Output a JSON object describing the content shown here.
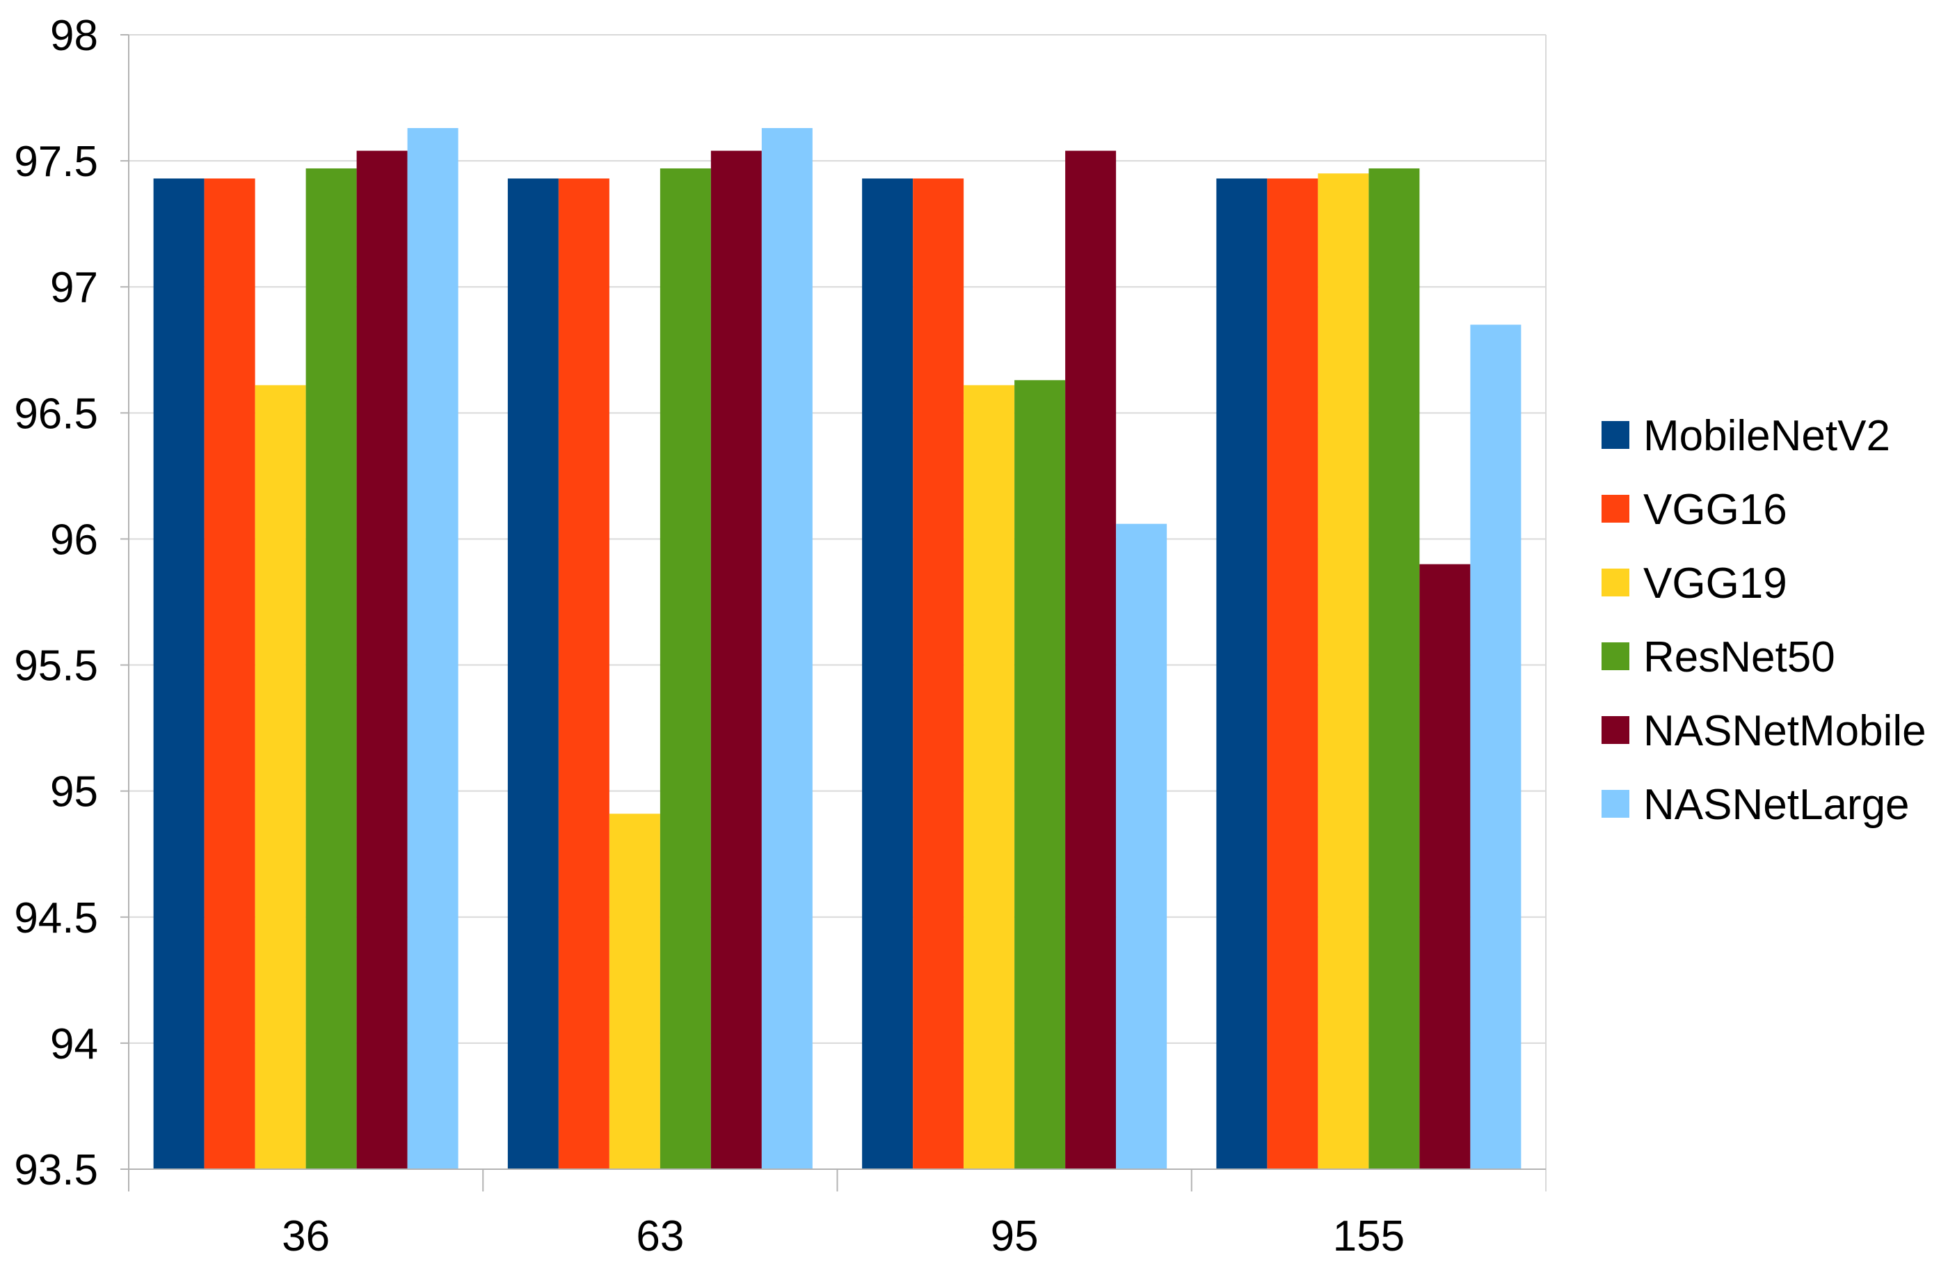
{
  "chart_data": {
    "type": "bar",
    "title": "",
    "xlabel": "",
    "ylabel": "",
    "categories": [
      "36",
      "63",
      "95",
      "155"
    ],
    "ylim": [
      93.5,
      98
    ],
    "yticks": [
      "93.5",
      "94",
      "94.5",
      "95",
      "95.5",
      "96",
      "96.5",
      "97",
      "97.5",
      "98"
    ],
    "grid": "horizontal",
    "legend_position": "right",
    "series": [
      {
        "name": "MobileNetV2",
        "color": "#004586",
        "values": [
          97.43,
          97.43,
          97.43,
          97.43
        ]
      },
      {
        "name": "VGG16",
        "color": "#ff420e",
        "values": [
          97.43,
          97.43,
          97.43,
          97.43
        ]
      },
      {
        "name": "VGG19",
        "color": "#ffd320",
        "values": [
          96.61,
          94.91,
          96.61,
          97.45
        ]
      },
      {
        "name": "ResNet50",
        "color": "#579d1c",
        "values": [
          97.47,
          97.47,
          96.63,
          97.47
        ]
      },
      {
        "name": "NASNetMobile",
        "color": "#7e0021",
        "values": [
          97.54,
          97.54,
          97.54,
          95.9
        ]
      },
      {
        "name": "NASNetLarge",
        "color": "#83caff",
        "values": [
          97.63,
          97.63,
          96.06,
          96.85
        ]
      }
    ]
  }
}
